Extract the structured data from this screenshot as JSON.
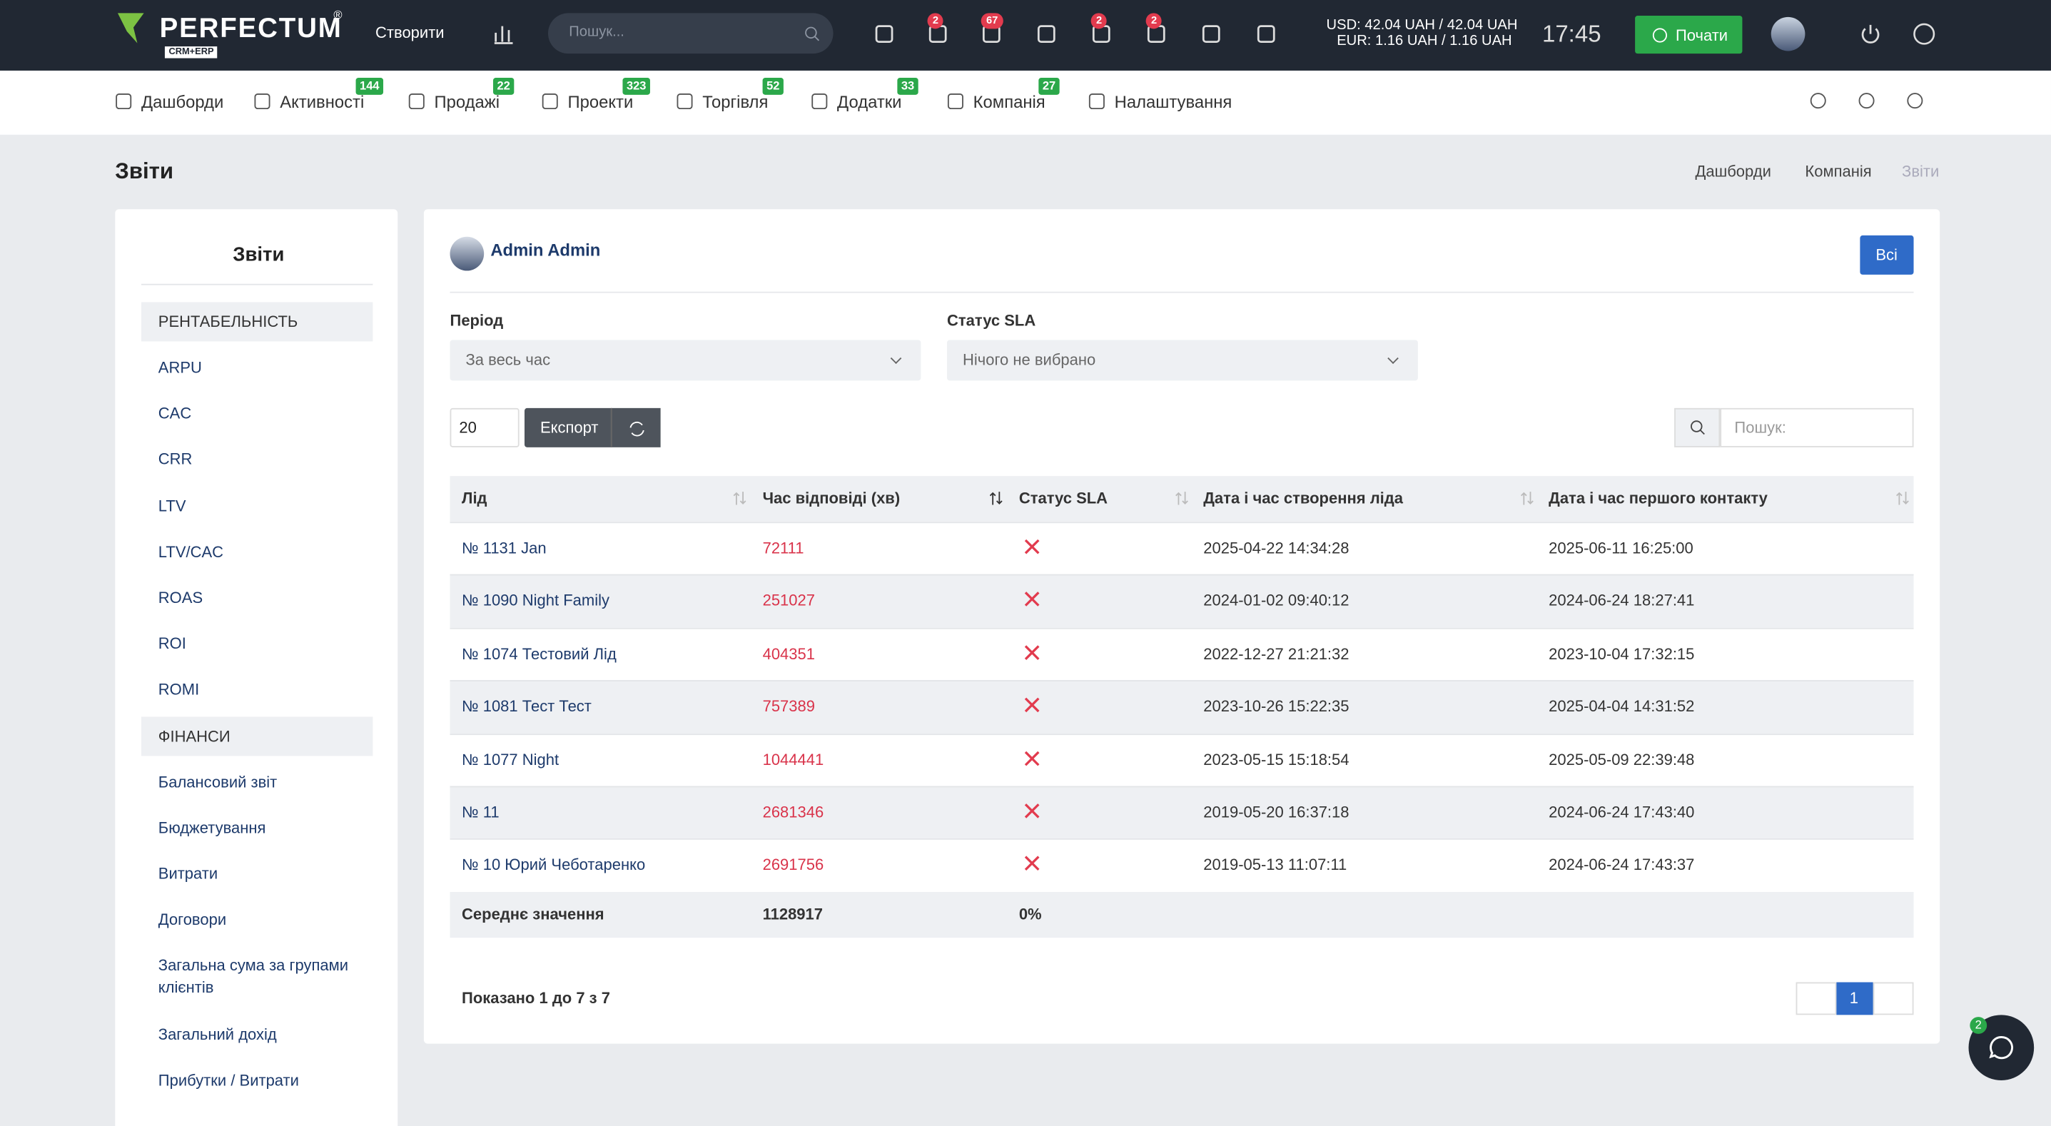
{
  "header": {
    "logo": "PERFECTUM",
    "logo_mark": "®",
    "logo_sub": "CRM+ERP",
    "create": "Створити",
    "search_placeholder": "Пошук...",
    "badges": [
      2,
      67,
      2,
      2
    ],
    "usd": "USD: 42.04 UAH / 42.04 UAH",
    "eur": "EUR: 1.16 UAH / 1.16 UAH",
    "time": "17:45",
    "start": "Почати"
  },
  "nav": [
    {
      "label": "Дашборди"
    },
    {
      "label": "Активності",
      "badge": 144
    },
    {
      "label": "Продажі",
      "badge": 22
    },
    {
      "label": "Проекти",
      "badge": 323
    },
    {
      "label": "Торгівля",
      "badge": 52
    },
    {
      "label": "Додатки",
      "badge": 33
    },
    {
      "label": "Компанія",
      "badge": 27
    },
    {
      "label": "Налаштування"
    }
  ],
  "page": {
    "title": "Звіти",
    "breadcrumbs": [
      "Дашборди",
      "Компанія",
      "Звіти"
    ]
  },
  "sidebar": {
    "title": "Звіти",
    "groups": [
      {
        "title": "РЕНТАБЕЛЬНІСТЬ",
        "items": [
          "ARPU",
          "CAC",
          "CRR",
          "LTV",
          "LTV/CAC",
          "ROAS",
          "ROI",
          "ROMI"
        ]
      },
      {
        "title": "ФІНАНСИ",
        "items": [
          "Балансовий звіт",
          "Бюджетування",
          "Витрати",
          "Договори",
          "Загальна сума за групами клієнтів",
          "Загальний дохід",
          "Прибутки / Витрати"
        ]
      }
    ]
  },
  "report": {
    "user": "Admin Admin",
    "all_button": "Всі",
    "filters": [
      {
        "label": "Період",
        "value": "За весь час"
      },
      {
        "label": "Статус SLA",
        "value": "Нічого не вибрано"
      }
    ],
    "page_size": 20,
    "export": "Експорт",
    "search_placeholder": "Пошук:",
    "columns": [
      "Лід",
      "Час відповіді (хв)",
      "Статус SLA",
      "Дата і час створення ліда",
      "Дата і час першого контакту"
    ],
    "rows": [
      [
        "№ 1131 Jan",
        72111,
        "2025-04-22 14:34:28",
        "2025-06-11 16:25:00"
      ],
      [
        "№ 1090 Night Family",
        251027,
        "2024-01-02 09:40:12",
        "2024-06-24 18:27:41"
      ],
      [
        "№ 1074 Тестовий Лід",
        404351,
        "2022-12-27 21:21:32",
        "2023-10-04 17:32:15"
      ],
      [
        "№ 1081 Тест Тест",
        757389,
        "2023-10-26 15:22:35",
        "2025-04-04 14:31:52"
      ],
      [
        "№ 1077 Night",
        1044441,
        "2023-05-15 15:18:54",
        "2025-05-09 22:39:48"
      ],
      [
        "№ 11",
        2681346,
        "2019-05-20 16:37:18",
        "2024-06-24 17:43:40"
      ],
      [
        "№ 10 Юрий Чеботаренко",
        2691756,
        "2019-05-13 11:07:11",
        "2024-06-24 17:43:37"
      ]
    ],
    "summary": [
      "Середнє значення",
      1128917,
      "0%"
    ],
    "info": "Показано 1 до 7 з 7",
    "current_page": 1
  },
  "chat": {
    "badge": 2
  }
}
